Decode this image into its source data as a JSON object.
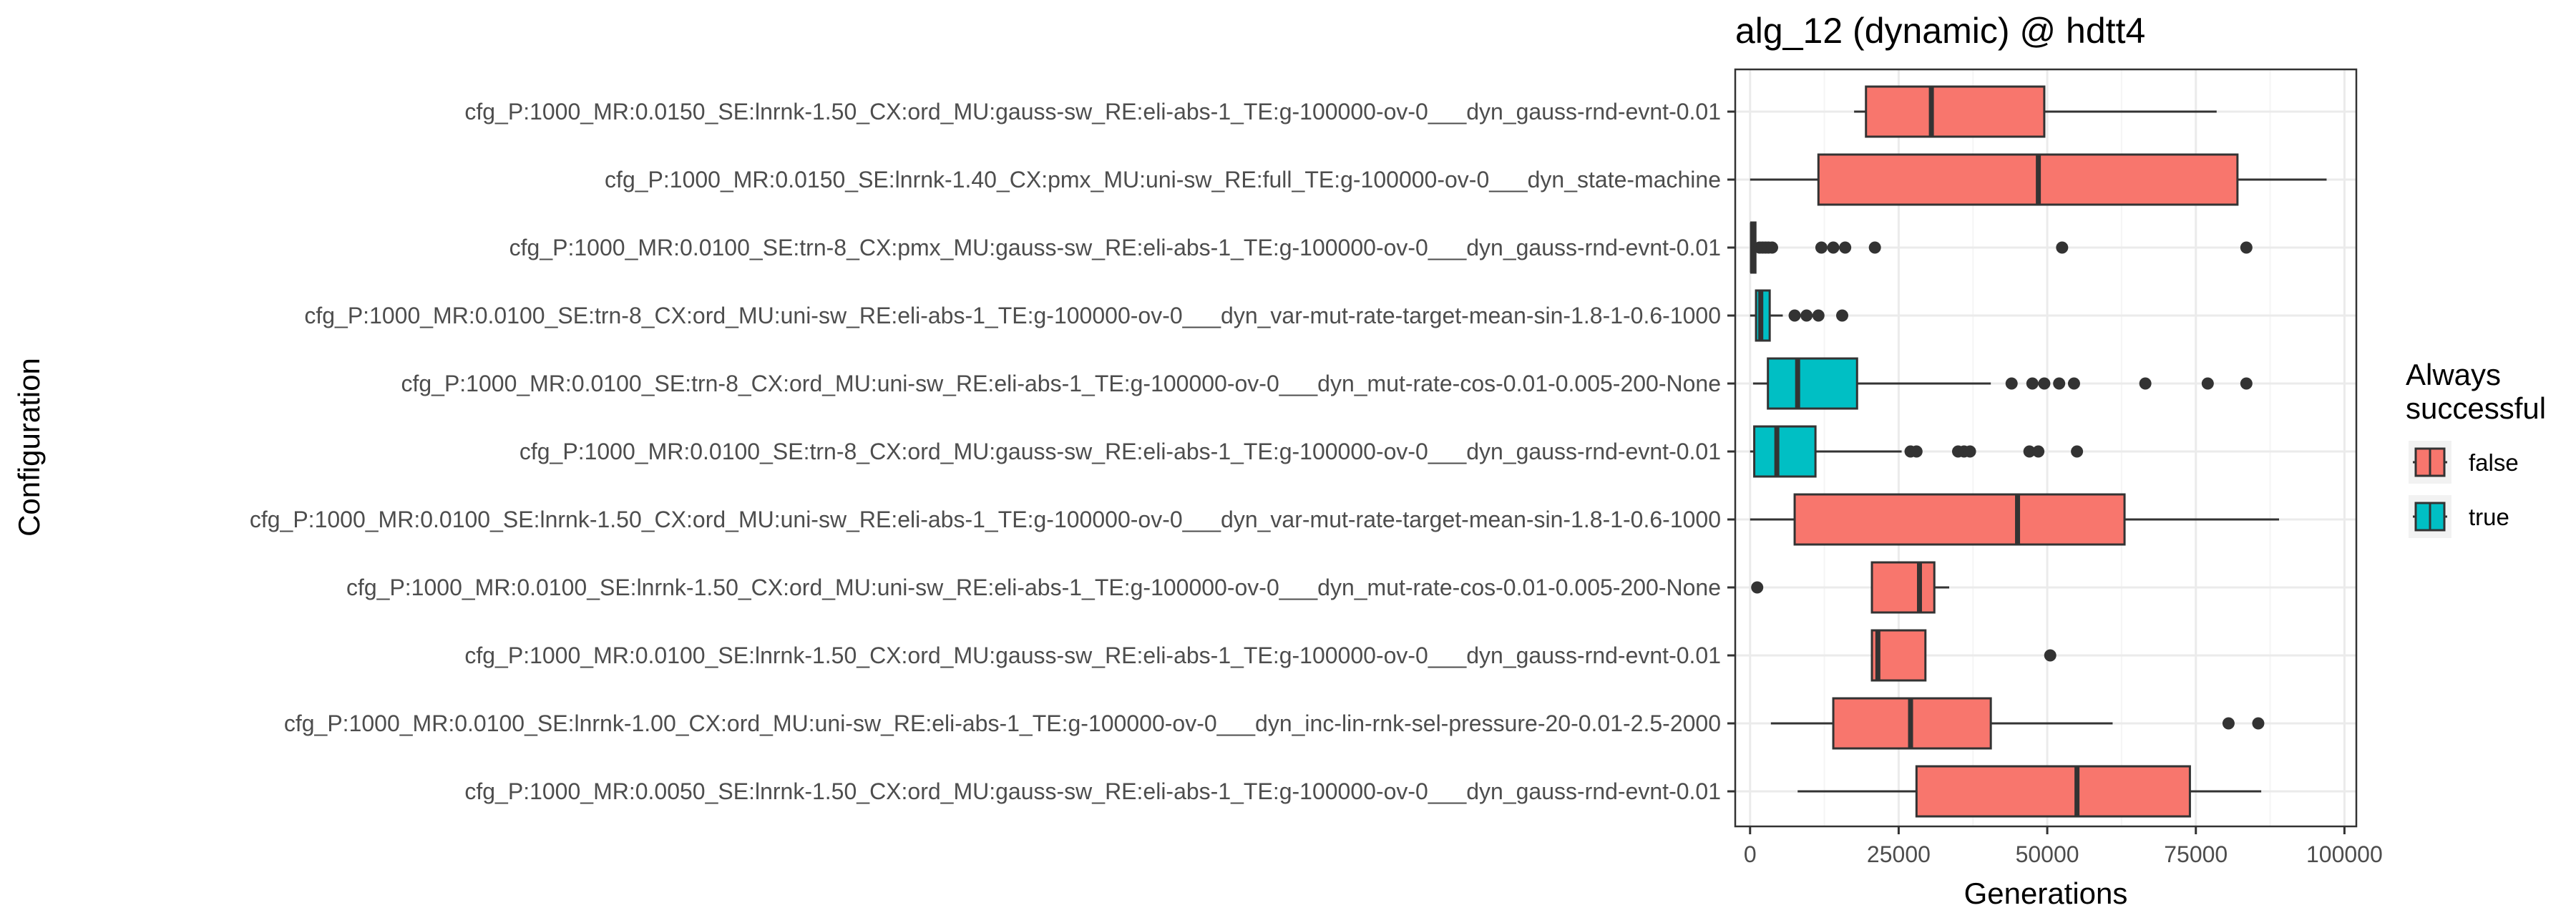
{
  "chart_data": {
    "type": "boxplot",
    "title": "alg_12 (dynamic) @ hdtt4",
    "xlabel": "Generations",
    "ylabel": "Configuration",
    "xlim": [
      -2500,
      102000
    ],
    "xticks": [
      0,
      25000,
      50000,
      75000,
      100000
    ],
    "xtick_labels": [
      "0",
      "25000",
      "50000",
      "75000",
      "100000"
    ],
    "grid": true,
    "legend": {
      "title_lines": [
        "Always",
        "successful"
      ],
      "placement": "right",
      "entries": [
        {
          "label": "false",
          "color": "#F8766D"
        },
        {
          "label": "true",
          "color": "#00BFC4"
        }
      ]
    },
    "colors": {
      "false": "#F8766D",
      "true": "#00BFC4",
      "outline": "#333333",
      "grid_major": "#ebebeb",
      "grid_minor": "#f5f5f5",
      "panel_border": "#333333"
    },
    "boxes": [
      {
        "label": "cfg_P:1000_MR:0.0150_SE:lnrnk-1.50_CX:ord_MU:gauss-sw_RE:eli-abs-1_TE:g-100000-ov-0___dyn_gauss-rnd-evnt-0.01",
        "always_successful": "false",
        "whisker_low": 17500,
        "q1": 19500,
        "median": 30500,
        "q3": 49500,
        "whisker_high": 78500,
        "outliers": []
      },
      {
        "label": "cfg_P:1000_MR:0.0150_SE:lnrnk-1.40_CX:pmx_MU:uni-sw_RE:full_TE:g-100000-ov-0___dyn_state-machine",
        "always_successful": "false",
        "whisker_low": 0,
        "q1": 11500,
        "median": 48500,
        "q3": 82000,
        "whisker_high": 97000,
        "outliers": []
      },
      {
        "label": "cfg_P:1000_MR:0.0100_SE:trn-8_CX:pmx_MU:gauss-sw_RE:eli-abs-1_TE:g-100000-ov-0___dyn_gauss-rnd-evnt-0.01",
        "always_successful": "false",
        "whisker_low": 0,
        "q1": 200,
        "median": 400,
        "q3": 900,
        "whisker_high": 1300,
        "outliers": [
          1600,
          2100,
          2600,
          3100,
          3700,
          12000,
          14000,
          16000,
          21000,
          52500,
          83500
        ]
      },
      {
        "label": "cfg_P:1000_MR:0.0100_SE:trn-8_CX:ord_MU:uni-sw_RE:eli-abs-1_TE:g-100000-ov-0___dyn_var-mut-rate-target-mean-sin-1.8-1-0.6-1000",
        "always_successful": "true",
        "whisker_low": 0,
        "q1": 1000,
        "median": 1800,
        "q3": 3300,
        "whisker_high": 5500,
        "outliers": [
          7500,
          9500,
          11500,
          15500
        ]
      },
      {
        "label": "cfg_P:1000_MR:0.0100_SE:trn-8_CX:ord_MU:uni-sw_RE:eli-abs-1_TE:g-100000-ov-0___dyn_mut-rate-cos-0.01-0.005-200-None",
        "always_successful": "true",
        "whisker_low": 500,
        "q1": 3000,
        "median": 8000,
        "q3": 18000,
        "whisker_high": 40500,
        "outliers": [
          44000,
          47500,
          49500,
          52000,
          54500,
          66500,
          77000,
          83500
        ]
      },
      {
        "label": "cfg_P:1000_MR:0.0100_SE:trn-8_CX:ord_MU:gauss-sw_RE:eli-abs-1_TE:g-100000-ov-0___dyn_gauss-rnd-evnt-0.01",
        "always_successful": "true",
        "whisker_low": 0,
        "q1": 700,
        "median": 4500,
        "q3": 11000,
        "whisker_high": 25500,
        "outliers": [
          27000,
          28000,
          35000,
          36000,
          37000,
          47000,
          48500,
          55000
        ]
      },
      {
        "label": "cfg_P:1000_MR:0.0100_SE:lnrnk-1.50_CX:ord_MU:uni-sw_RE:eli-abs-1_TE:g-100000-ov-0___dyn_var-mut-rate-target-mean-sin-1.8-1-0.6-1000",
        "always_successful": "false",
        "whisker_low": 0,
        "q1": 7500,
        "median": 45000,
        "q3": 63000,
        "whisker_high": 89000,
        "outliers": []
      },
      {
        "label": "cfg_P:1000_MR:0.0100_SE:lnrnk-1.50_CX:ord_MU:uni-sw_RE:eli-abs-1_TE:g-100000-ov-0___dyn_mut-rate-cos-0.01-0.005-200-None",
        "always_successful": "false",
        "whisker_low": 20500,
        "q1": 20500,
        "median": 28500,
        "q3": 31000,
        "whisker_high": 33500,
        "outliers": [
          1200
        ]
      },
      {
        "label": "cfg_P:1000_MR:0.0100_SE:lnrnk-1.50_CX:ord_MU:gauss-sw_RE:eli-abs-1_TE:g-100000-ov-0___dyn_gauss-rnd-evnt-0.01",
        "always_successful": "false",
        "whisker_low": 20500,
        "q1": 20500,
        "median": 21500,
        "q3": 29500,
        "whisker_high": 29500,
        "outliers": [
          50500
        ]
      },
      {
        "label": "cfg_P:1000_MR:0.0100_SE:lnrnk-1.00_CX:ord_MU:uni-sw_RE:eli-abs-1_TE:g-100000-ov-0___dyn_inc-lin-rnk-sel-pressure-20-0.01-2.5-2000",
        "always_successful": "false",
        "whisker_low": 3500,
        "q1": 14000,
        "median": 27000,
        "q3": 40500,
        "whisker_high": 61000,
        "outliers": [
          80500,
          85500
        ]
      },
      {
        "label": "cfg_P:1000_MR:0.0050_SE:lnrnk-1.50_CX:ord_MU:gauss-sw_RE:eli-abs-1_TE:g-100000-ov-0___dyn_gauss-rnd-evnt-0.01",
        "always_successful": "false",
        "whisker_low": 8000,
        "q1": 28000,
        "median": 55000,
        "q3": 74000,
        "whisker_high": 86000,
        "outliers": []
      }
    ]
  }
}
